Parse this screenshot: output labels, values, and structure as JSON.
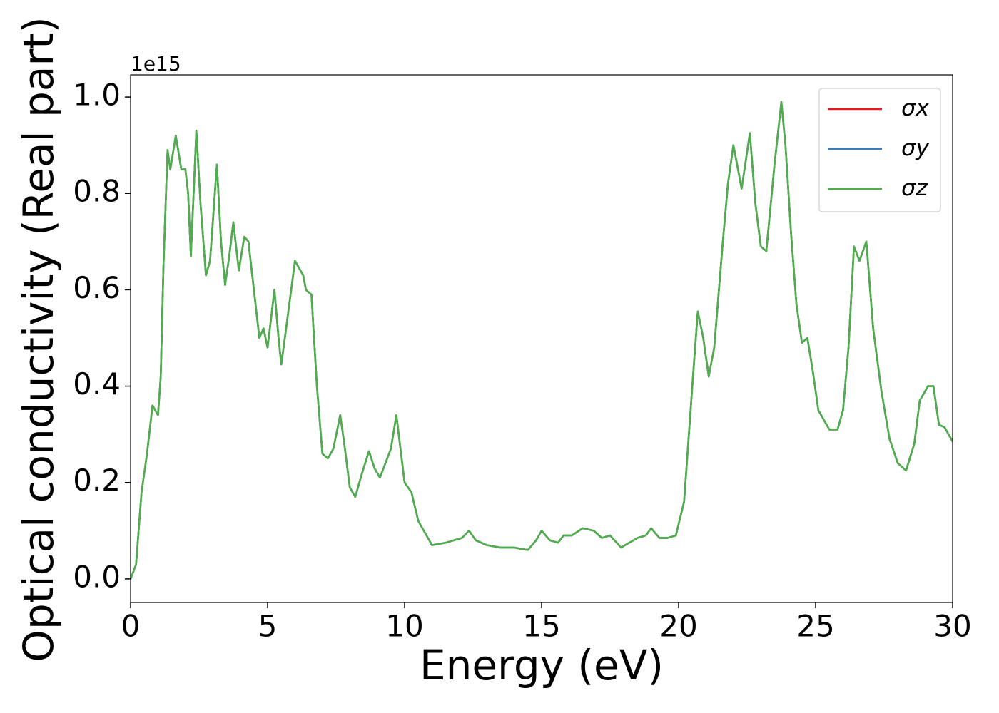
{
  "chart_data": {
    "type": "line",
    "xlabel": "Energy (eV)",
    "ylabel": "Optical conductivity (Real part)",
    "offset_text": "1e15",
    "x": [
      0,
      0.2,
      0.4,
      0.6,
      0.8,
      1.0,
      1.1,
      1.2,
      1.35,
      1.45,
      1.65,
      1.85,
      2.0,
      2.1,
      2.2,
      2.4,
      2.55,
      2.75,
      2.9,
      3.15,
      3.3,
      3.45,
      3.6,
      3.75,
      3.95,
      4.15,
      4.3,
      4.5,
      4.7,
      4.85,
      5.0,
      5.25,
      5.4,
      5.5,
      5.7,
      6.0,
      6.3,
      6.4,
      6.6,
      6.8,
      7.0,
      7.2,
      7.4,
      7.65,
      7.8,
      8.0,
      8.2,
      8.45,
      8.7,
      8.9,
      9.1,
      9.3,
      9.5,
      9.7,
      9.85,
      10.0,
      10.25,
      10.5,
      10.8,
      11.0,
      11.5,
      11.8,
      12.1,
      12.35,
      12.6,
      13.0,
      13.5,
      14.0,
      14.5,
      14.8,
      15.0,
      15.3,
      15.6,
      15.8,
      16.1,
      16.5,
      16.9,
      17.2,
      17.5,
      17.9,
      18.2,
      18.5,
      18.8,
      19.0,
      19.3,
      19.6,
      19.9,
      20.2,
      20.5,
      20.7,
      20.9,
      21.1,
      21.3,
      21.6,
      21.8,
      22.0,
      22.3,
      22.6,
      22.8,
      23.0,
      23.2,
      23.5,
      23.75,
      23.9,
      24.1,
      24.3,
      24.5,
      24.7,
      24.9,
      25.1,
      25.3,
      25.5,
      25.8,
      26.0,
      26.2,
      26.4,
      26.6,
      26.85,
      27.1,
      27.4,
      27.7,
      28.0,
      28.3,
      28.6,
      28.8,
      29.1,
      29.3,
      29.5,
      29.7,
      30.0
    ],
    "series": [
      {
        "name": "σx",
        "color": "#e41a1c",
        "values": [
          0.0,
          0.03,
          0.18,
          0.26,
          0.36,
          0.34,
          0.42,
          0.65,
          0.89,
          0.85,
          0.92,
          0.85,
          0.85,
          0.8,
          0.67,
          0.93,
          0.78,
          0.63,
          0.66,
          0.86,
          0.7,
          0.61,
          0.67,
          0.74,
          0.64,
          0.71,
          0.7,
          0.6,
          0.5,
          0.52,
          0.48,
          0.6,
          0.5,
          0.445,
          0.53,
          0.66,
          0.63,
          0.6,
          0.59,
          0.4,
          0.26,
          0.25,
          0.27,
          0.34,
          0.28,
          0.19,
          0.17,
          0.22,
          0.265,
          0.23,
          0.21,
          0.24,
          0.27,
          0.34,
          0.27,
          0.2,
          0.18,
          0.12,
          0.09,
          0.07,
          0.075,
          0.08,
          0.085,
          0.1,
          0.08,
          0.07,
          0.065,
          0.065,
          0.06,
          0.08,
          0.1,
          0.08,
          0.075,
          0.09,
          0.09,
          0.105,
          0.1,
          0.085,
          0.09,
          0.065,
          0.075,
          0.085,
          0.09,
          0.105,
          0.085,
          0.085,
          0.09,
          0.16,
          0.4,
          0.555,
          0.5,
          0.42,
          0.48,
          0.69,
          0.82,
          0.9,
          0.81,
          0.925,
          0.78,
          0.69,
          0.68,
          0.86,
          0.99,
          0.9,
          0.72,
          0.57,
          0.49,
          0.5,
          0.43,
          0.35,
          0.33,
          0.31,
          0.31,
          0.35,
          0.48,
          0.69,
          0.66,
          0.7,
          0.52,
          0.39,
          0.29,
          0.24,
          0.225,
          0.28,
          0.37,
          0.4,
          0.4,
          0.32,
          0.315,
          0.285
        ]
      },
      {
        "name": "σy",
        "color": "#377eb8",
        "values": [
          0.0,
          0.03,
          0.18,
          0.26,
          0.36,
          0.34,
          0.42,
          0.65,
          0.89,
          0.85,
          0.92,
          0.85,
          0.85,
          0.8,
          0.67,
          0.93,
          0.78,
          0.63,
          0.66,
          0.86,
          0.7,
          0.61,
          0.67,
          0.74,
          0.64,
          0.71,
          0.7,
          0.6,
          0.5,
          0.52,
          0.48,
          0.6,
          0.5,
          0.445,
          0.53,
          0.66,
          0.63,
          0.6,
          0.59,
          0.4,
          0.26,
          0.25,
          0.27,
          0.34,
          0.28,
          0.19,
          0.17,
          0.22,
          0.265,
          0.23,
          0.21,
          0.24,
          0.27,
          0.34,
          0.27,
          0.2,
          0.18,
          0.12,
          0.09,
          0.07,
          0.075,
          0.08,
          0.085,
          0.1,
          0.08,
          0.07,
          0.065,
          0.065,
          0.06,
          0.08,
          0.1,
          0.08,
          0.075,
          0.09,
          0.09,
          0.105,
          0.1,
          0.085,
          0.09,
          0.065,
          0.075,
          0.085,
          0.09,
          0.105,
          0.085,
          0.085,
          0.09,
          0.16,
          0.4,
          0.555,
          0.5,
          0.42,
          0.48,
          0.69,
          0.82,
          0.9,
          0.81,
          0.925,
          0.78,
          0.69,
          0.68,
          0.86,
          0.99,
          0.9,
          0.72,
          0.57,
          0.49,
          0.5,
          0.43,
          0.35,
          0.33,
          0.31,
          0.31,
          0.35,
          0.48,
          0.69,
          0.66,
          0.7,
          0.52,
          0.39,
          0.29,
          0.24,
          0.225,
          0.28,
          0.37,
          0.4,
          0.4,
          0.32,
          0.315,
          0.285
        ]
      },
      {
        "name": "σz",
        "color": "#4daf4a",
        "values": [
          0.0,
          0.03,
          0.18,
          0.26,
          0.36,
          0.34,
          0.42,
          0.65,
          0.89,
          0.85,
          0.92,
          0.85,
          0.85,
          0.8,
          0.67,
          0.93,
          0.78,
          0.63,
          0.66,
          0.86,
          0.7,
          0.61,
          0.67,
          0.74,
          0.64,
          0.71,
          0.7,
          0.6,
          0.5,
          0.52,
          0.48,
          0.6,
          0.5,
          0.445,
          0.53,
          0.66,
          0.63,
          0.6,
          0.59,
          0.4,
          0.26,
          0.25,
          0.27,
          0.34,
          0.28,
          0.19,
          0.17,
          0.22,
          0.265,
          0.23,
          0.21,
          0.24,
          0.27,
          0.34,
          0.27,
          0.2,
          0.18,
          0.12,
          0.09,
          0.07,
          0.075,
          0.08,
          0.085,
          0.1,
          0.08,
          0.07,
          0.065,
          0.065,
          0.06,
          0.08,
          0.1,
          0.08,
          0.075,
          0.09,
          0.09,
          0.105,
          0.1,
          0.085,
          0.09,
          0.065,
          0.075,
          0.085,
          0.09,
          0.105,
          0.085,
          0.085,
          0.09,
          0.16,
          0.4,
          0.555,
          0.5,
          0.42,
          0.48,
          0.69,
          0.82,
          0.9,
          0.81,
          0.925,
          0.78,
          0.69,
          0.68,
          0.86,
          0.99,
          0.9,
          0.72,
          0.57,
          0.49,
          0.5,
          0.43,
          0.35,
          0.33,
          0.31,
          0.31,
          0.35,
          0.48,
          0.69,
          0.66,
          0.7,
          0.52,
          0.39,
          0.29,
          0.24,
          0.225,
          0.28,
          0.37,
          0.4,
          0.4,
          0.32,
          0.315,
          0.285
        ]
      }
    ],
    "xlim": [
      0,
      30
    ],
    "xticks": [
      0,
      5,
      10,
      15,
      20,
      25,
      30
    ],
    "ylim": [
      -0.049,
      1.046
    ],
    "yticks": [
      {
        "value": 0,
        "label": "0.0"
      },
      0.2,
      0.4,
      0.6,
      0.8,
      {
        "value": 1,
        "label": "1.0"
      }
    ],
    "legend": "upper right",
    "grid": false
  }
}
